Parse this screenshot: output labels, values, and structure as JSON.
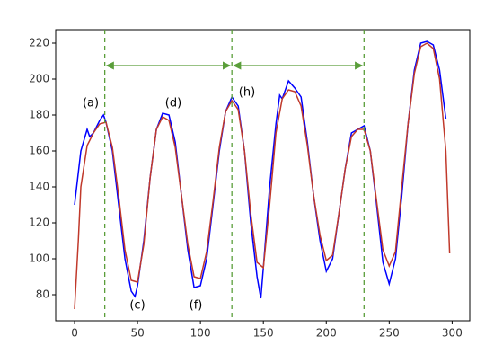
{
  "chart_data": {
    "type": "line",
    "annotations": [
      "(a)",
      "(d)",
      "(h)",
      "(c)",
      "(f)"
    ],
    "series": [
      {
        "color": "#0000ff",
        "x": [
          0,
          5,
          10,
          12,
          15,
          20,
          23,
          25,
          30,
          35,
          40,
          45,
          48,
          50,
          55,
          60,
          65,
          70,
          75,
          80,
          85,
          90,
          95,
          100,
          105,
          110,
          115,
          120,
          125,
          130,
          135,
          140,
          145,
          148,
          150,
          155,
          160,
          163,
          165,
          170,
          175,
          180,
          185,
          190,
          195,
          200,
          205,
          210,
          215,
          220,
          225,
          230,
          235,
          240,
          245,
          250,
          255,
          260,
          265,
          270,
          275,
          280,
          285,
          290,
          295
        ],
        "values": [
          130,
          160,
          172,
          168,
          170,
          177,
          180,
          176,
          160,
          130,
          100,
          82,
          79,
          85,
          110,
          145,
          172,
          181,
          180,
          165,
          135,
          105,
          84,
          85,
          100,
          130,
          160,
          182,
          190,
          185,
          160,
          120,
          90,
          78,
          95,
          140,
          175,
          191,
          189,
          199,
          195,
          190,
          165,
          135,
          110,
          93,
          100,
          125,
          150,
          170,
          172,
          174,
          160,
          130,
          98,
          86,
          100,
          135,
          175,
          205,
          220,
          221,
          219,
          205,
          178
        ]
      },
      {
        "color": "#c0392b",
        "x": [
          0,
          3,
          5,
          10,
          15,
          20,
          25,
          30,
          35,
          40,
          45,
          50,
          55,
          60,
          65,
          70,
          75,
          80,
          85,
          90,
          95,
          100,
          105,
          110,
          115,
          120,
          125,
          130,
          135,
          140,
          145,
          150,
          155,
          160,
          165,
          170,
          175,
          180,
          185,
          190,
          195,
          200,
          205,
          210,
          215,
          220,
          225,
          230,
          235,
          240,
          245,
          250,
          255,
          260,
          265,
          270,
          275,
          280,
          285,
          290,
          295,
          298
        ],
        "values": [
          72,
          110,
          140,
          163,
          170,
          175,
          176,
          162,
          135,
          105,
          88,
          87,
          108,
          145,
          172,
          179,
          177,
          162,
          135,
          108,
          90,
          89,
          104,
          132,
          162,
          182,
          188,
          183,
          160,
          125,
          98,
          95,
          130,
          170,
          189,
          194,
          193,
          185,
          163,
          135,
          113,
          99,
          102,
          125,
          150,
          168,
          172,
          172,
          160,
          132,
          105,
          96,
          104,
          140,
          175,
          203,
          218,
          220,
          217,
          200,
          160,
          103
        ]
      }
    ],
    "vlines": [
      24,
      125,
      230
    ],
    "vline_color": "#5a9e3a",
    "xlim": [
      -15,
      314
    ],
    "ylim": [
      65.5,
      227.5
    ],
    "xticks": [
      0,
      50,
      100,
      150,
      200,
      250,
      300
    ],
    "yticks": [
      80,
      100,
      120,
      140,
      160,
      180,
      200,
      220
    ]
  }
}
